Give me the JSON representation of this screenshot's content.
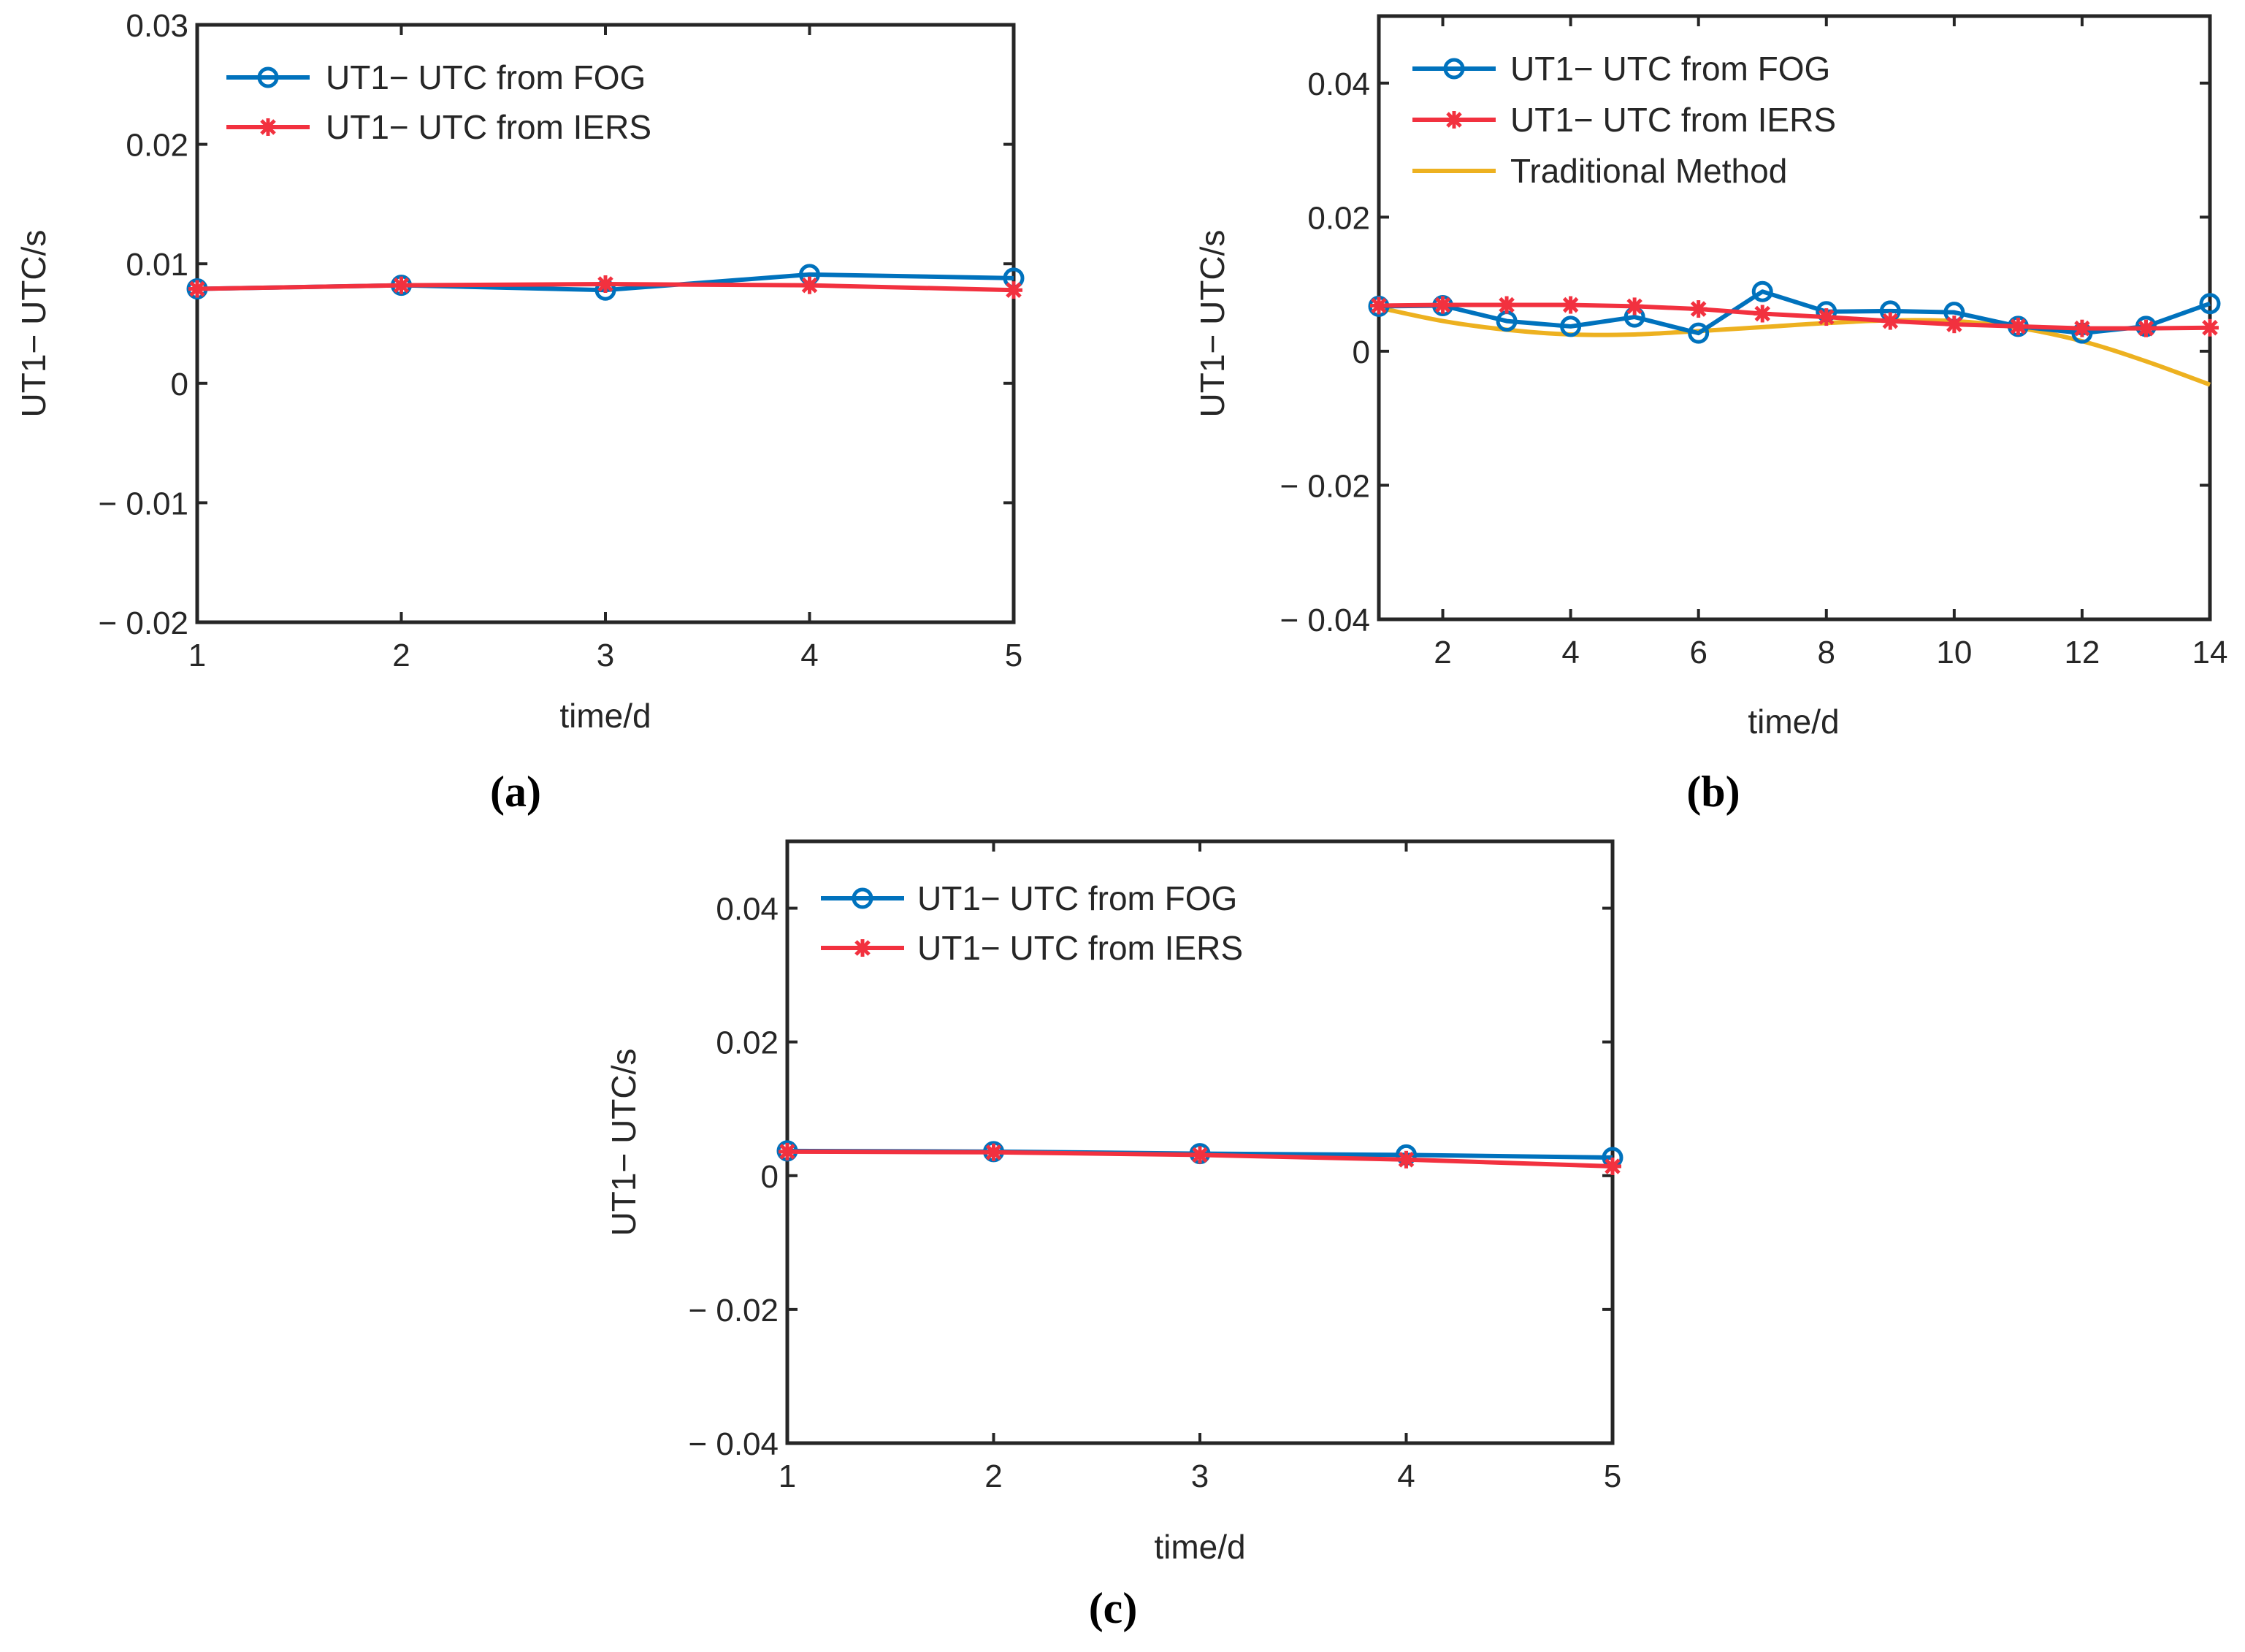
{
  "colors": {
    "fog": "#0072BD",
    "iers": "#F2313F",
    "traditional": "#EDB120",
    "axis": "#262626"
  },
  "chart_data": [
    {
      "type": "line",
      "panel_label": "(a)",
      "xlabel": "time/d",
      "ylabel": "UT1− UTC/s",
      "xlim": [
        1,
        5
      ],
      "ylim": [
        -0.02,
        0.03
      ],
      "xticks": [
        1,
        2,
        3,
        4,
        5
      ],
      "xtick_labels": [
        "1",
        "2",
        "3",
        "4",
        "5"
      ],
      "yticks": [
        -0.02,
        -0.01,
        0,
        0.01,
        0.02,
        0.03
      ],
      "ytick_labels": [
        "− 0.02",
        "− 0.01",
        "0",
        "0.01",
        "0.02",
        "0.03"
      ],
      "grid": false,
      "legend_position": "top-left",
      "series": [
        {
          "name": "UT1− UTC from FOG",
          "color_key": "fog",
          "marker": "circle",
          "x": [
            1,
            2,
            3,
            4,
            5
          ],
          "y": [
            0.0079,
            0.0082,
            0.0078,
            0.0091,
            0.0088
          ]
        },
        {
          "name": "UT1− UTC from IERS",
          "color_key": "iers",
          "marker": "asterisk",
          "x": [
            1,
            2,
            3,
            4,
            5
          ],
          "y": [
            0.0079,
            0.0082,
            0.0083,
            0.0082,
            0.0078
          ]
        }
      ]
    },
    {
      "type": "line",
      "panel_label": "(b)",
      "xlabel": "time/d",
      "ylabel": "UT1− UTC/s",
      "xlim": [
        1,
        14
      ],
      "ylim": [
        -0.04,
        0.05
      ],
      "xticks": [
        2,
        4,
        6,
        8,
        10,
        12,
        14
      ],
      "xtick_labels": [
        "2",
        "4",
        "6",
        "8",
        "10",
        "12",
        "14"
      ],
      "yticks": [
        -0.04,
        -0.02,
        0,
        0.02,
        0.04
      ],
      "ytick_labels": [
        "− 0.04",
        "− 0.02",
        "0",
        "0.02",
        "0.04"
      ],
      "grid": false,
      "legend_position": "top-left",
      "series": [
        {
          "name": "UT1− UTC from FOG",
          "color_key": "fog",
          "marker": "circle",
          "x": [
            1,
            2,
            3,
            4,
            5,
            6,
            7,
            8,
            9,
            10,
            11,
            12,
            13,
            14
          ],
          "y": [
            0.0067,
            0.0068,
            0.0045,
            0.0037,
            0.0051,
            0.0027,
            0.0089,
            0.0059,
            0.006,
            0.0058,
            0.0037,
            0.0027,
            0.0037,
            0.0071
          ]
        },
        {
          "name": "UT1− UTC from IERS",
          "color_key": "iers",
          "marker": "asterisk",
          "x": [
            1,
            2,
            3,
            4,
            5,
            6,
            7,
            8,
            9,
            10,
            11,
            12,
            13,
            14
          ],
          "y": [
            0.0068,
            0.0069,
            0.0069,
            0.0069,
            0.0067,
            0.0063,
            0.0056,
            0.0051,
            0.0045,
            0.004,
            0.0037,
            0.0034,
            0.0034,
            0.0035
          ]
        },
        {
          "name": "Traditional Method",
          "color_key": "traditional",
          "marker": "none",
          "x": [
            1,
            2,
            3,
            4,
            5,
            6,
            7,
            8,
            9,
            10,
            11,
            12,
            13,
            14
          ],
          "y": [
            0.0065,
            0.0045,
            0.0032,
            0.0025,
            0.0025,
            0.003,
            0.0036,
            0.0042,
            0.0046,
            0.0045,
            0.0035,
            0.0015,
            -0.0015,
            -0.005
          ]
        }
      ]
    },
    {
      "type": "line",
      "panel_label": "(c)",
      "xlabel": "time/d",
      "ylabel": "UT1− UTC/s",
      "xlim": [
        1,
        5
      ],
      "ylim": [
        -0.04,
        0.05
      ],
      "xticks": [
        1,
        2,
        3,
        4,
        5
      ],
      "xtick_labels": [
        "1",
        "2",
        "3",
        "4",
        "5"
      ],
      "yticks": [
        -0.04,
        -0.02,
        0,
        0.02,
        0.04
      ],
      "ytick_labels": [
        "− 0.04",
        "− 0.02",
        "0",
        "0.02",
        "0.04"
      ],
      "grid": false,
      "legend_position": "top-left",
      "series": [
        {
          "name": "UT1− UTC from FOG",
          "color_key": "fog",
          "marker": "circle",
          "x": [
            1,
            2,
            3,
            4,
            5
          ],
          "y": [
            0.0037,
            0.0036,
            0.0033,
            0.0031,
            0.0027
          ]
        },
        {
          "name": "UT1− UTC from IERS",
          "color_key": "iers",
          "marker": "asterisk",
          "x": [
            1,
            2,
            3,
            4,
            5
          ],
          "y": [
            0.0036,
            0.0035,
            0.0031,
            0.0024,
            0.0014
          ]
        }
      ]
    }
  ]
}
